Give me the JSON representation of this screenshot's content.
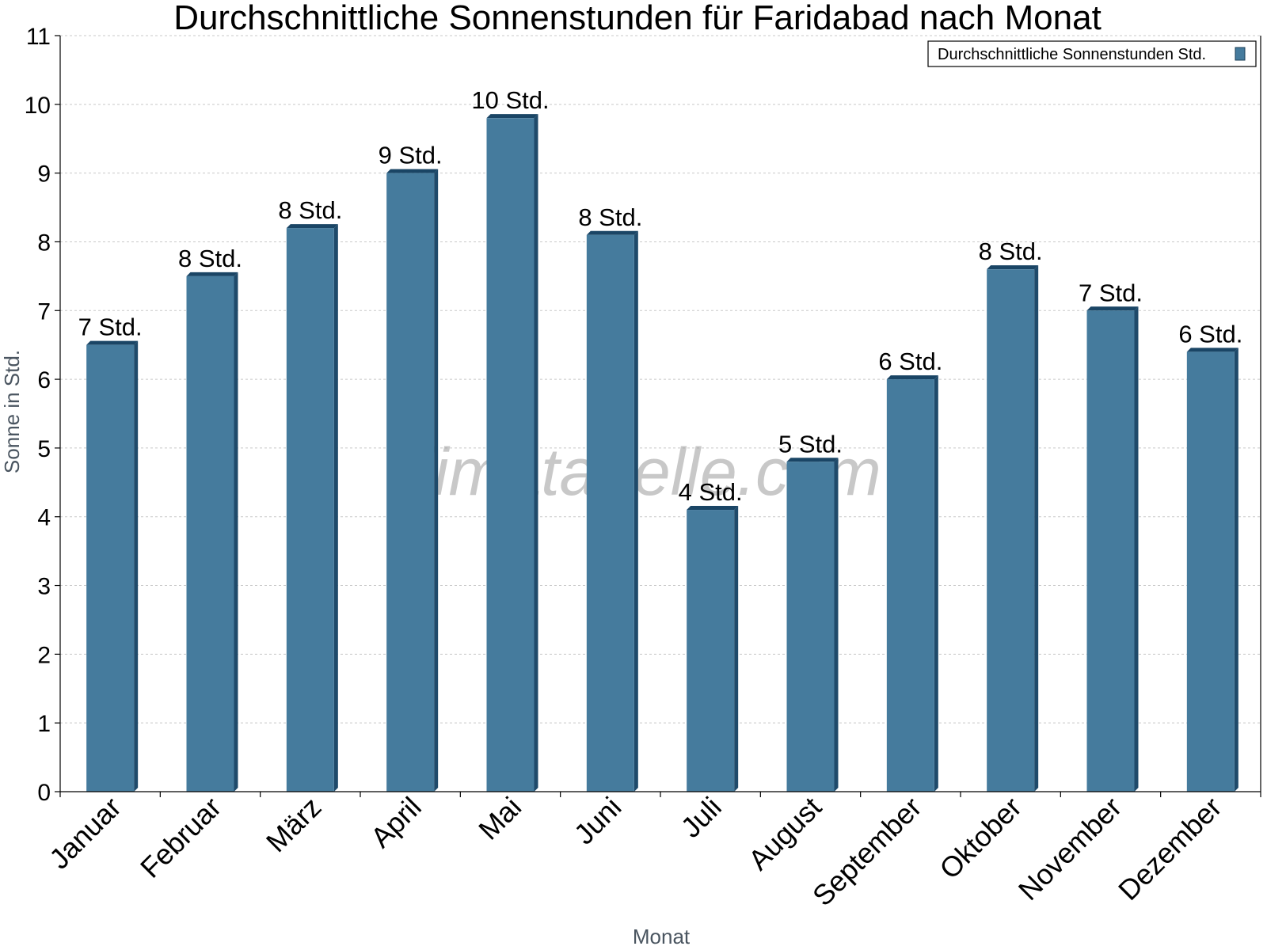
{
  "chart_data": {
    "type": "bar",
    "title": "Durchschnittliche Sonnenstunden für Faridabad nach Monat",
    "xlabel": "Monat",
    "ylabel": "Sonne in Std.",
    "categories": [
      "Januar",
      "Februar",
      "März",
      "April",
      "Mai",
      "Juni",
      "Juli",
      "August",
      "September",
      "Oktober",
      "November",
      "Dezember"
    ],
    "series": [
      {
        "name": "Durchschnittliche Sonnenstunden Std.",
        "values": [
          6.5,
          7.5,
          8.2,
          9.0,
          9.8,
          8.1,
          4.1,
          4.8,
          6.0,
          7.6,
          7.0,
          6.4
        ],
        "labels": [
          "7 Std.",
          "8 Std.",
          "8 Std.",
          "9 Std.",
          "10 Std.",
          "8 Std.",
          "4 Std.",
          "5 Std.",
          "6 Std.",
          "8 Std.",
          "7 Std.",
          "6 Std."
        ],
        "color": "#457b9d"
      }
    ],
    "ylim": [
      0,
      11
    ],
    "yticks": [
      0,
      1,
      2,
      3,
      4,
      5,
      6,
      7,
      8,
      9,
      10,
      11
    ],
    "grid": true,
    "legend_position": "top-right",
    "watermark": "klimatabelle.com"
  }
}
